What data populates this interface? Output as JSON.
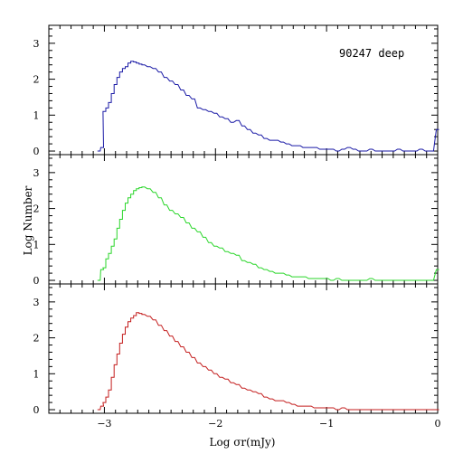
{
  "chart_data": {
    "type": "area",
    "xlabel": "Log σr(mJy)",
    "ylabel": "Log Number",
    "xlim": [
      -3.5,
      0
    ],
    "x_ticks": [
      -3,
      -2,
      -1,
      0
    ],
    "x_tick_labels": [
      "−3",
      "−2",
      "−1",
      "0"
    ],
    "ylim": [
      -0.1,
      3.5
    ],
    "y_ticks": [
      0,
      1,
      2,
      3
    ],
    "y_tick_labels": [
      "0",
      "1",
      "2",
      "3"
    ],
    "bin_width": 0.025,
    "annotation": "90247 deep",
    "panels": [
      {
        "color": "#1a1aa6",
        "x": [
          -3.05,
          -3.02,
          -3.0,
          -2.975,
          -2.95,
          -2.925,
          -2.9,
          -2.875,
          -2.85,
          -2.825,
          -2.8,
          -2.775,
          -2.75,
          -2.725,
          -2.7,
          -2.675,
          -2.65,
          -2.6,
          -2.55,
          -2.5,
          -2.45,
          -2.4,
          -2.35,
          -2.3,
          -2.25,
          -2.2,
          -2.15,
          -2.1,
          -2.05,
          -2.0,
          -1.95,
          -1.9,
          -1.85,
          -1.8,
          -1.75,
          -1.7,
          -1.65,
          -1.6,
          -1.55,
          -1.5,
          -1.45,
          -1.4,
          -1.35,
          -1.3,
          -1.25,
          -1.2,
          -1.15,
          -1.1,
          -1.05,
          -1.0,
          -0.95,
          -0.9,
          -0.85,
          -0.8,
          -0.75,
          -0.7,
          -0.65,
          -0.6,
          -0.55,
          -0.5,
          -0.45,
          -0.4,
          -0.35,
          -0.3,
          -0.25,
          -0.2,
          -0.15,
          -0.1,
          -0.05,
          0.0
        ],
        "y": [
          0,
          0.1,
          1.1,
          1.2,
          1.35,
          1.6,
          1.85,
          2.05,
          2.2,
          2.3,
          2.35,
          2.45,
          2.5,
          2.48,
          2.45,
          2.42,
          2.4,
          2.35,
          2.3,
          2.2,
          2.05,
          1.95,
          1.85,
          1.7,
          1.55,
          1.45,
          1.2,
          1.15,
          1.1,
          1.05,
          0.95,
          0.9,
          0.8,
          0.85,
          0.7,
          0.6,
          0.5,
          0.45,
          0.35,
          0.3,
          0.3,
          0.25,
          0.2,
          0.15,
          0.15,
          0.1,
          0.1,
          0.1,
          0.05,
          0.05,
          0.05,
          0,
          0.05,
          0.1,
          0.05,
          0,
          0,
          0.05,
          0,
          0,
          0,
          0,
          0.05,
          0,
          0,
          0,
          0.05,
          0,
          0,
          0.6
        ]
      },
      {
        "color": "#2ad62a",
        "x": [
          -3.05,
          -3.02,
          -3.0,
          -2.975,
          -2.95,
          -2.925,
          -2.9,
          -2.875,
          -2.85,
          -2.825,
          -2.8,
          -2.775,
          -2.75,
          -2.725,
          -2.7,
          -2.675,
          -2.65,
          -2.6,
          -2.55,
          -2.5,
          -2.45,
          -2.4,
          -2.35,
          -2.3,
          -2.25,
          -2.2,
          -2.15,
          -2.1,
          -2.05,
          -2.0,
          -1.95,
          -1.9,
          -1.85,
          -1.8,
          -1.75,
          -1.7,
          -1.65,
          -1.6,
          -1.55,
          -1.5,
          -1.45,
          -1.4,
          -1.35,
          -1.3,
          -1.25,
          -1.2,
          -1.15,
          -1.1,
          -1.05,
          -1.0,
          -0.95,
          -0.9,
          -0.85,
          -0.8,
          -0.75,
          -0.7,
          -0.65,
          -0.6,
          -0.55,
          -0.5,
          -0.45,
          -0.4,
          -0.35,
          -0.3,
          -0.25,
          -0.2,
          -0.15,
          -0.1,
          -0.05,
          0.0
        ],
        "y": [
          0,
          0.3,
          0.35,
          0.6,
          0.75,
          0.95,
          1.15,
          1.45,
          1.7,
          1.95,
          2.15,
          2.3,
          2.4,
          2.5,
          2.55,
          2.58,
          2.6,
          2.55,
          2.45,
          2.3,
          2.1,
          1.95,
          1.85,
          1.75,
          1.6,
          1.45,
          1.35,
          1.2,
          1.05,
          0.95,
          0.9,
          0.8,
          0.75,
          0.7,
          0.55,
          0.5,
          0.45,
          0.35,
          0.3,
          0.25,
          0.2,
          0.2,
          0.15,
          0.1,
          0.1,
          0.1,
          0.05,
          0.05,
          0.05,
          0.05,
          0,
          0.05,
          0,
          0,
          0,
          0,
          0,
          0.05,
          0,
          0,
          0,
          0,
          0,
          0,
          0,
          0,
          0,
          0,
          0,
          0.3
        ]
      },
      {
        "color": "#c41e1e",
        "x": [
          -3.05,
          -3.02,
          -3.0,
          -2.975,
          -2.95,
          -2.925,
          -2.9,
          -2.875,
          -2.85,
          -2.825,
          -2.8,
          -2.775,
          -2.75,
          -2.725,
          -2.7,
          -2.675,
          -2.65,
          -2.6,
          -2.55,
          -2.5,
          -2.45,
          -2.4,
          -2.35,
          -2.3,
          -2.25,
          -2.2,
          -2.15,
          -2.1,
          -2.05,
          -2.0,
          -1.95,
          -1.9,
          -1.85,
          -1.8,
          -1.75,
          -1.7,
          -1.65,
          -1.6,
          -1.55,
          -1.5,
          -1.45,
          -1.4,
          -1.35,
          -1.3,
          -1.25,
          -1.2,
          -1.15,
          -1.1,
          -1.05,
          -1.0,
          -0.95,
          -0.9,
          -0.85,
          -0.8,
          -0.75,
          -0.7,
          -0.65,
          -0.6,
          -0.55,
          -0.5,
          -0.45,
          -0.4,
          -0.35,
          -0.3,
          -0.25,
          -0.2,
          -0.15,
          -0.1,
          -0.05,
          0.0
        ],
        "y": [
          0,
          0.1,
          0.2,
          0.35,
          0.55,
          0.9,
          1.25,
          1.55,
          1.85,
          2.1,
          2.3,
          2.45,
          2.55,
          2.62,
          2.7,
          2.68,
          2.65,
          2.6,
          2.5,
          2.35,
          2.2,
          2.05,
          1.9,
          1.75,
          1.6,
          1.45,
          1.3,
          1.2,
          1.1,
          1.0,
          0.9,
          0.85,
          0.75,
          0.7,
          0.6,
          0.55,
          0.5,
          0.45,
          0.35,
          0.3,
          0.25,
          0.25,
          0.2,
          0.15,
          0.1,
          0.1,
          0.1,
          0.05,
          0.05,
          0.05,
          0.05,
          0,
          0.05,
          0,
          0,
          0,
          0,
          0,
          0,
          0,
          0,
          0,
          0,
          0,
          0,
          0,
          0,
          0,
          0,
          0
        ]
      }
    ]
  }
}
